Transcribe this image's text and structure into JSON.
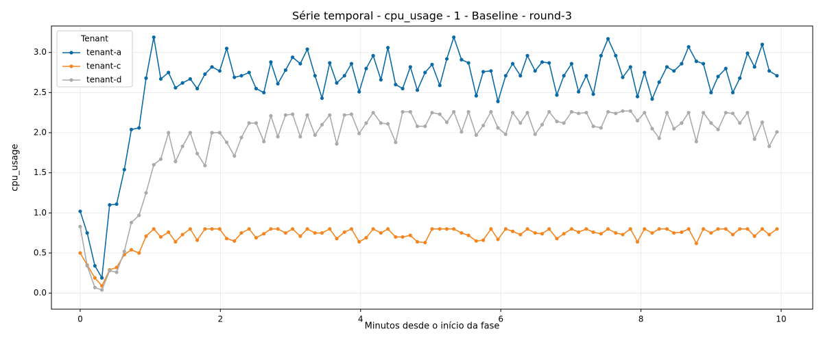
{
  "chart_data": {
    "type": "line",
    "title": "Série temporal - cpu_usage - 1 - Baseline - round-3",
    "x_label": "Minutos desde o início da fase",
    "y_label": "cpu_usage",
    "legend_title": "Tenant",
    "legend": "upper left",
    "grid": true,
    "xlim": [
      -0.41,
      10.45
    ],
    "ylim": [
      -0.2,
      3.33
    ],
    "xticks": [
      0,
      2,
      4,
      6,
      8,
      10
    ],
    "yticks": [
      {
        "value": 0,
        "label": "0.0"
      },
      0.5,
      {
        "value": 1,
        "label": "1.0"
      },
      1.5,
      {
        "value": 2,
        "label": "2.0"
      },
      2.5,
      {
        "value": 3,
        "label": "3.0"
      }
    ],
    "x": [
      0,
      0.1,
      0.21,
      0.31,
      0.42,
      0.52,
      0.63,
      0.73,
      0.84,
      0.94,
      1.05,
      1.15,
      1.26,
      1.36,
      1.46,
      1.57,
      1.67,
      1.78,
      1.88,
      1.99,
      2.09,
      2.2,
      2.3,
      2.41,
      2.51,
      2.62,
      2.72,
      2.82,
      2.93,
      3.03,
      3.14,
      3.24,
      3.35,
      3.45,
      3.56,
      3.66,
      3.77,
      3.87,
      3.98,
      4.08,
      4.18,
      4.29,
      4.39,
      4.5,
      4.6,
      4.71,
      4.81,
      4.92,
      5.02,
      5.13,
      5.23,
      5.33,
      5.44,
      5.54,
      5.65,
      5.75,
      5.86,
      5.96,
      6.07,
      6.17,
      6.28,
      6.38,
      6.49,
      6.59,
      6.69,
      6.8,
      6.9,
      7.01,
      7.11,
      7.22,
      7.32,
      7.43,
      7.53,
      7.64,
      7.74,
      7.85,
      7.95,
      8.05,
      8.16,
      8.26,
      8.37,
      8.47,
      8.58,
      8.68,
      8.79,
      8.89,
      9.0,
      9.1,
      9.21,
      9.31,
      9.41,
      9.52,
      9.62,
      9.73,
      9.83,
      9.94
    ],
    "series": [
      {
        "name": "tenant-a",
        "color": "#0a6aa6",
        "values": [
          1.02,
          0.75,
          0.34,
          0.19,
          1.1,
          1.11,
          1.54,
          2.04,
          2.06,
          2.68,
          3.19,
          2.67,
          2.75,
          2.56,
          2.62,
          2.67,
          2.55,
          2.73,
          2.82,
          2.77,
          3.05,
          2.69,
          2.71,
          2.75,
          2.55,
          2.5,
          2.88,
          2.61,
          2.78,
          2.94,
          2.86,
          3.04,
          2.71,
          2.43,
          2.87,
          2.62,
          2.71,
          2.86,
          2.51,
          2.8,
          2.96,
          2.66,
          3.06,
          2.6,
          2.55,
          2.82,
          2.53,
          2.75,
          2.85,
          2.59,
          2.92,
          3.19,
          2.91,
          2.87,
          2.46,
          2.76,
          2.77,
          2.39,
          2.71,
          2.86,
          2.71,
          2.96,
          2.77,
          2.88,
          2.87,
          2.47,
          2.71,
          2.86,
          2.51,
          2.71,
          2.48,
          2.96,
          3.17,
          2.96,
          2.69,
          2.82,
          2.45,
          2.75,
          2.42,
          2.63,
          2.82,
          2.77,
          2.86,
          3.07,
          2.89,
          2.86,
          2.5,
          2.7,
          2.8,
          2.5,
          2.68,
          2.99,
          2.82,
          3.1,
          2.77,
          2.71
        ]
      },
      {
        "name": "tenant-c",
        "color": "#f5851f",
        "values": [
          0.5,
          0.35,
          0.19,
          0.09,
          0.29,
          0.32,
          0.48,
          0.54,
          0.5,
          0.71,
          0.8,
          0.7,
          0.76,
          0.64,
          0.73,
          0.8,
          0.66,
          0.8,
          0.8,
          0.8,
          0.68,
          0.65,
          0.75,
          0.8,
          0.69,
          0.74,
          0.8,
          0.8,
          0.75,
          0.8,
          0.71,
          0.8,
          0.75,
          0.75,
          0.8,
          0.68,
          0.76,
          0.8,
          0.64,
          0.69,
          0.8,
          0.75,
          0.8,
          0.7,
          0.7,
          0.72,
          0.64,
          0.63,
          0.8,
          0.8,
          0.8,
          0.8,
          0.75,
          0.72,
          0.65,
          0.66,
          0.8,
          0.67,
          0.8,
          0.77,
          0.73,
          0.8,
          0.75,
          0.74,
          0.8,
          0.68,
          0.74,
          0.8,
          0.76,
          0.8,
          0.76,
          0.74,
          0.8,
          0.75,
          0.73,
          0.8,
          0.64,
          0.8,
          0.75,
          0.8,
          0.8,
          0.75,
          0.76,
          0.8,
          0.62,
          0.8,
          0.75,
          0.8,
          0.8,
          0.73,
          0.8,
          0.8,
          0.71,
          0.8,
          0.73,
          0.8
        ]
      },
      {
        "name": "tenant-d",
        "color": "#aaaaaa",
        "values": [
          0.83,
          0.34,
          0.07,
          0.04,
          0.28,
          0.26,
          0.52,
          0.88,
          0.97,
          1.25,
          1.6,
          1.67,
          2.0,
          1.64,
          1.83,
          2.0,
          1.74,
          1.59,
          2.0,
          2.0,
          1.88,
          1.71,
          1.94,
          2.12,
          2.12,
          1.89,
          2.21,
          1.95,
          2.22,
          2.23,
          1.95,
          2.22,
          1.97,
          2.1,
          2.22,
          1.86,
          2.22,
          2.23,
          1.99,
          2.12,
          2.25,
          2.12,
          2.11,
          1.88,
          2.26,
          2.26,
          2.08,
          2.08,
          2.25,
          2.23,
          2.13,
          2.26,
          2.01,
          2.26,
          1.97,
          2.09,
          2.26,
          2.06,
          1.98,
          2.25,
          2.12,
          2.25,
          1.98,
          2.1,
          2.26,
          2.14,
          2.12,
          2.26,
          2.24,
          2.25,
          2.08,
          2.06,
          2.26,
          2.24,
          2.27,
          2.27,
          2.15,
          2.25,
          2.05,
          1.93,
          2.25,
          2.05,
          2.12,
          2.25,
          1.89,
          2.25,
          2.12,
          2.04,
          2.25,
          2.24,
          2.12,
          2.25,
          1.92,
          2.13,
          1.83,
          2.01
        ]
      }
    ]
  }
}
